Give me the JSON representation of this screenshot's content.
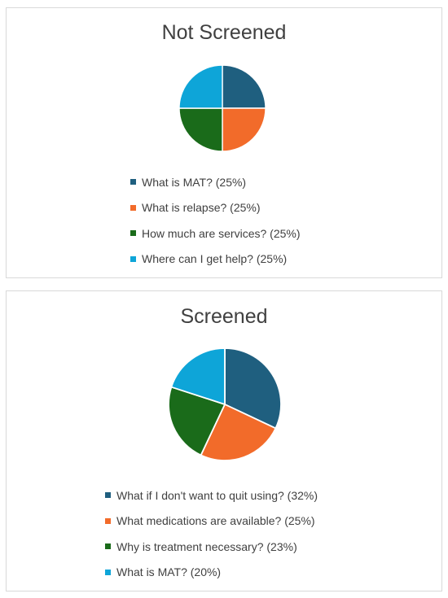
{
  "chart_data": [
    {
      "type": "pie",
      "title": "Not Screened",
      "slices": [
        {
          "label": "What is MAT? (25%)",
          "value": 25,
          "color": "#1f5f7f"
        },
        {
          "label": "What is relapse? (25%)",
          "value": 25,
          "color": "#f26b2a"
        },
        {
          "label": "How much are services? (25%)",
          "value": 25,
          "color": "#1a6b1a"
        },
        {
          "label": "Where can I get help? (25%)",
          "value": 25,
          "color": "#0ea5d8"
        }
      ],
      "legend": "bottom"
    },
    {
      "type": "pie",
      "title": "Screened",
      "slices": [
        {
          "label": "What if I don't want to quit using? (32%)",
          "value": 32,
          "color": "#1f5f7f"
        },
        {
          "label": "What medications are available? (25%)",
          "value": 25,
          "color": "#f26b2a"
        },
        {
          "label": "Why is treatment necessary? (23%)",
          "value": 23,
          "color": "#1a6b1a"
        },
        {
          "label": "What is MAT? (20%)",
          "value": 20,
          "color": "#0ea5d8"
        }
      ],
      "legend": "bottom"
    }
  ]
}
